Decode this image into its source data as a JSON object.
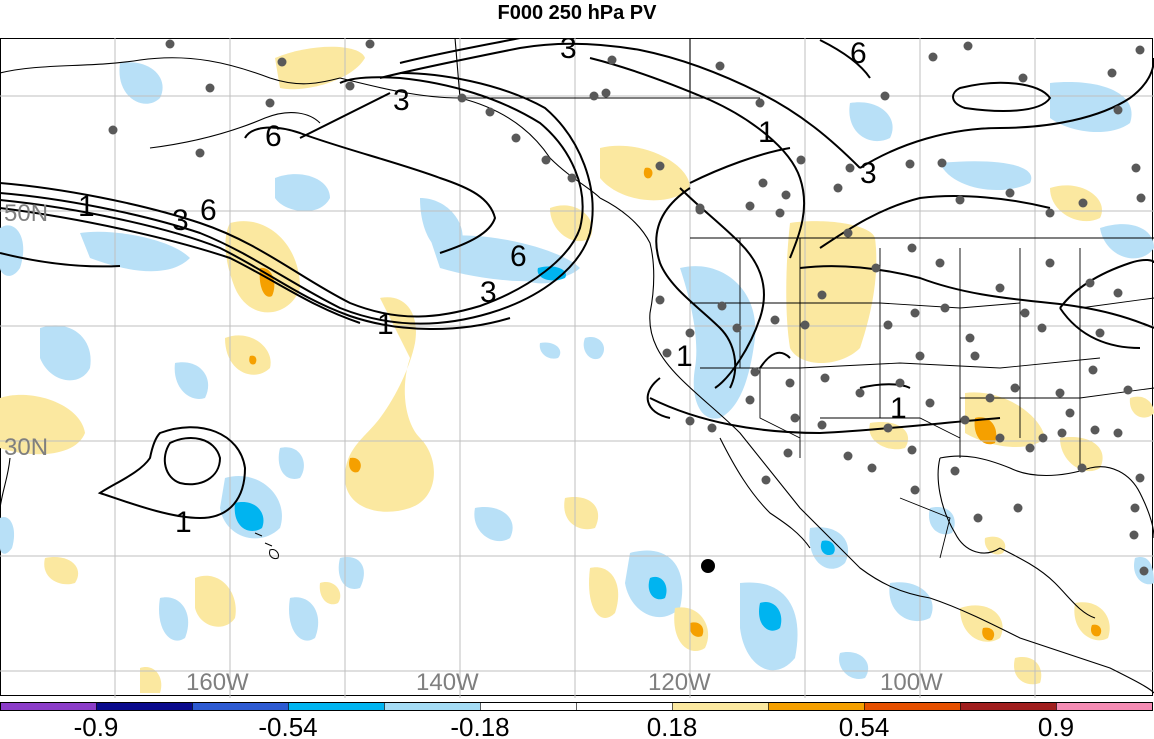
{
  "title": "F000 250 hPa PV",
  "map": {
    "lat_labels": [
      {
        "text": "50N",
        "name": "lat-50n"
      },
      {
        "text": "30N",
        "name": "lat-30n"
      }
    ],
    "lon_labels": [
      {
        "text": "160W",
        "name": "lon-160w"
      },
      {
        "text": "140W",
        "name": "lon-140w"
      },
      {
        "text": "120W",
        "name": "lon-120w"
      },
      {
        "text": "100W",
        "name": "lon-100w"
      }
    ],
    "contour_labels": [
      "1",
      "3",
      "6"
    ],
    "colors": {
      "light_blue": "#b8e0f7",
      "blue": "#00b4f0",
      "light_yellow": "#fbe8a0",
      "orange": "#f5a000",
      "grid": "#bfbfbf",
      "station_dot": "#595959"
    }
  },
  "colorbar": {
    "labels": [
      "-0.9",
      "-0.54",
      "-0.18",
      "0.18",
      "0.54",
      "0.9"
    ],
    "colors": [
      "#8b3cc8",
      "#0a0a8c",
      "#2d5ad2",
      "#00b4f0",
      "#a5dcf5",
      "#ffffff",
      "#ffffff",
      "#fbe8a0",
      "#f5a000",
      "#e65000",
      "#a01e1e",
      "#f58cb4"
    ]
  }
}
